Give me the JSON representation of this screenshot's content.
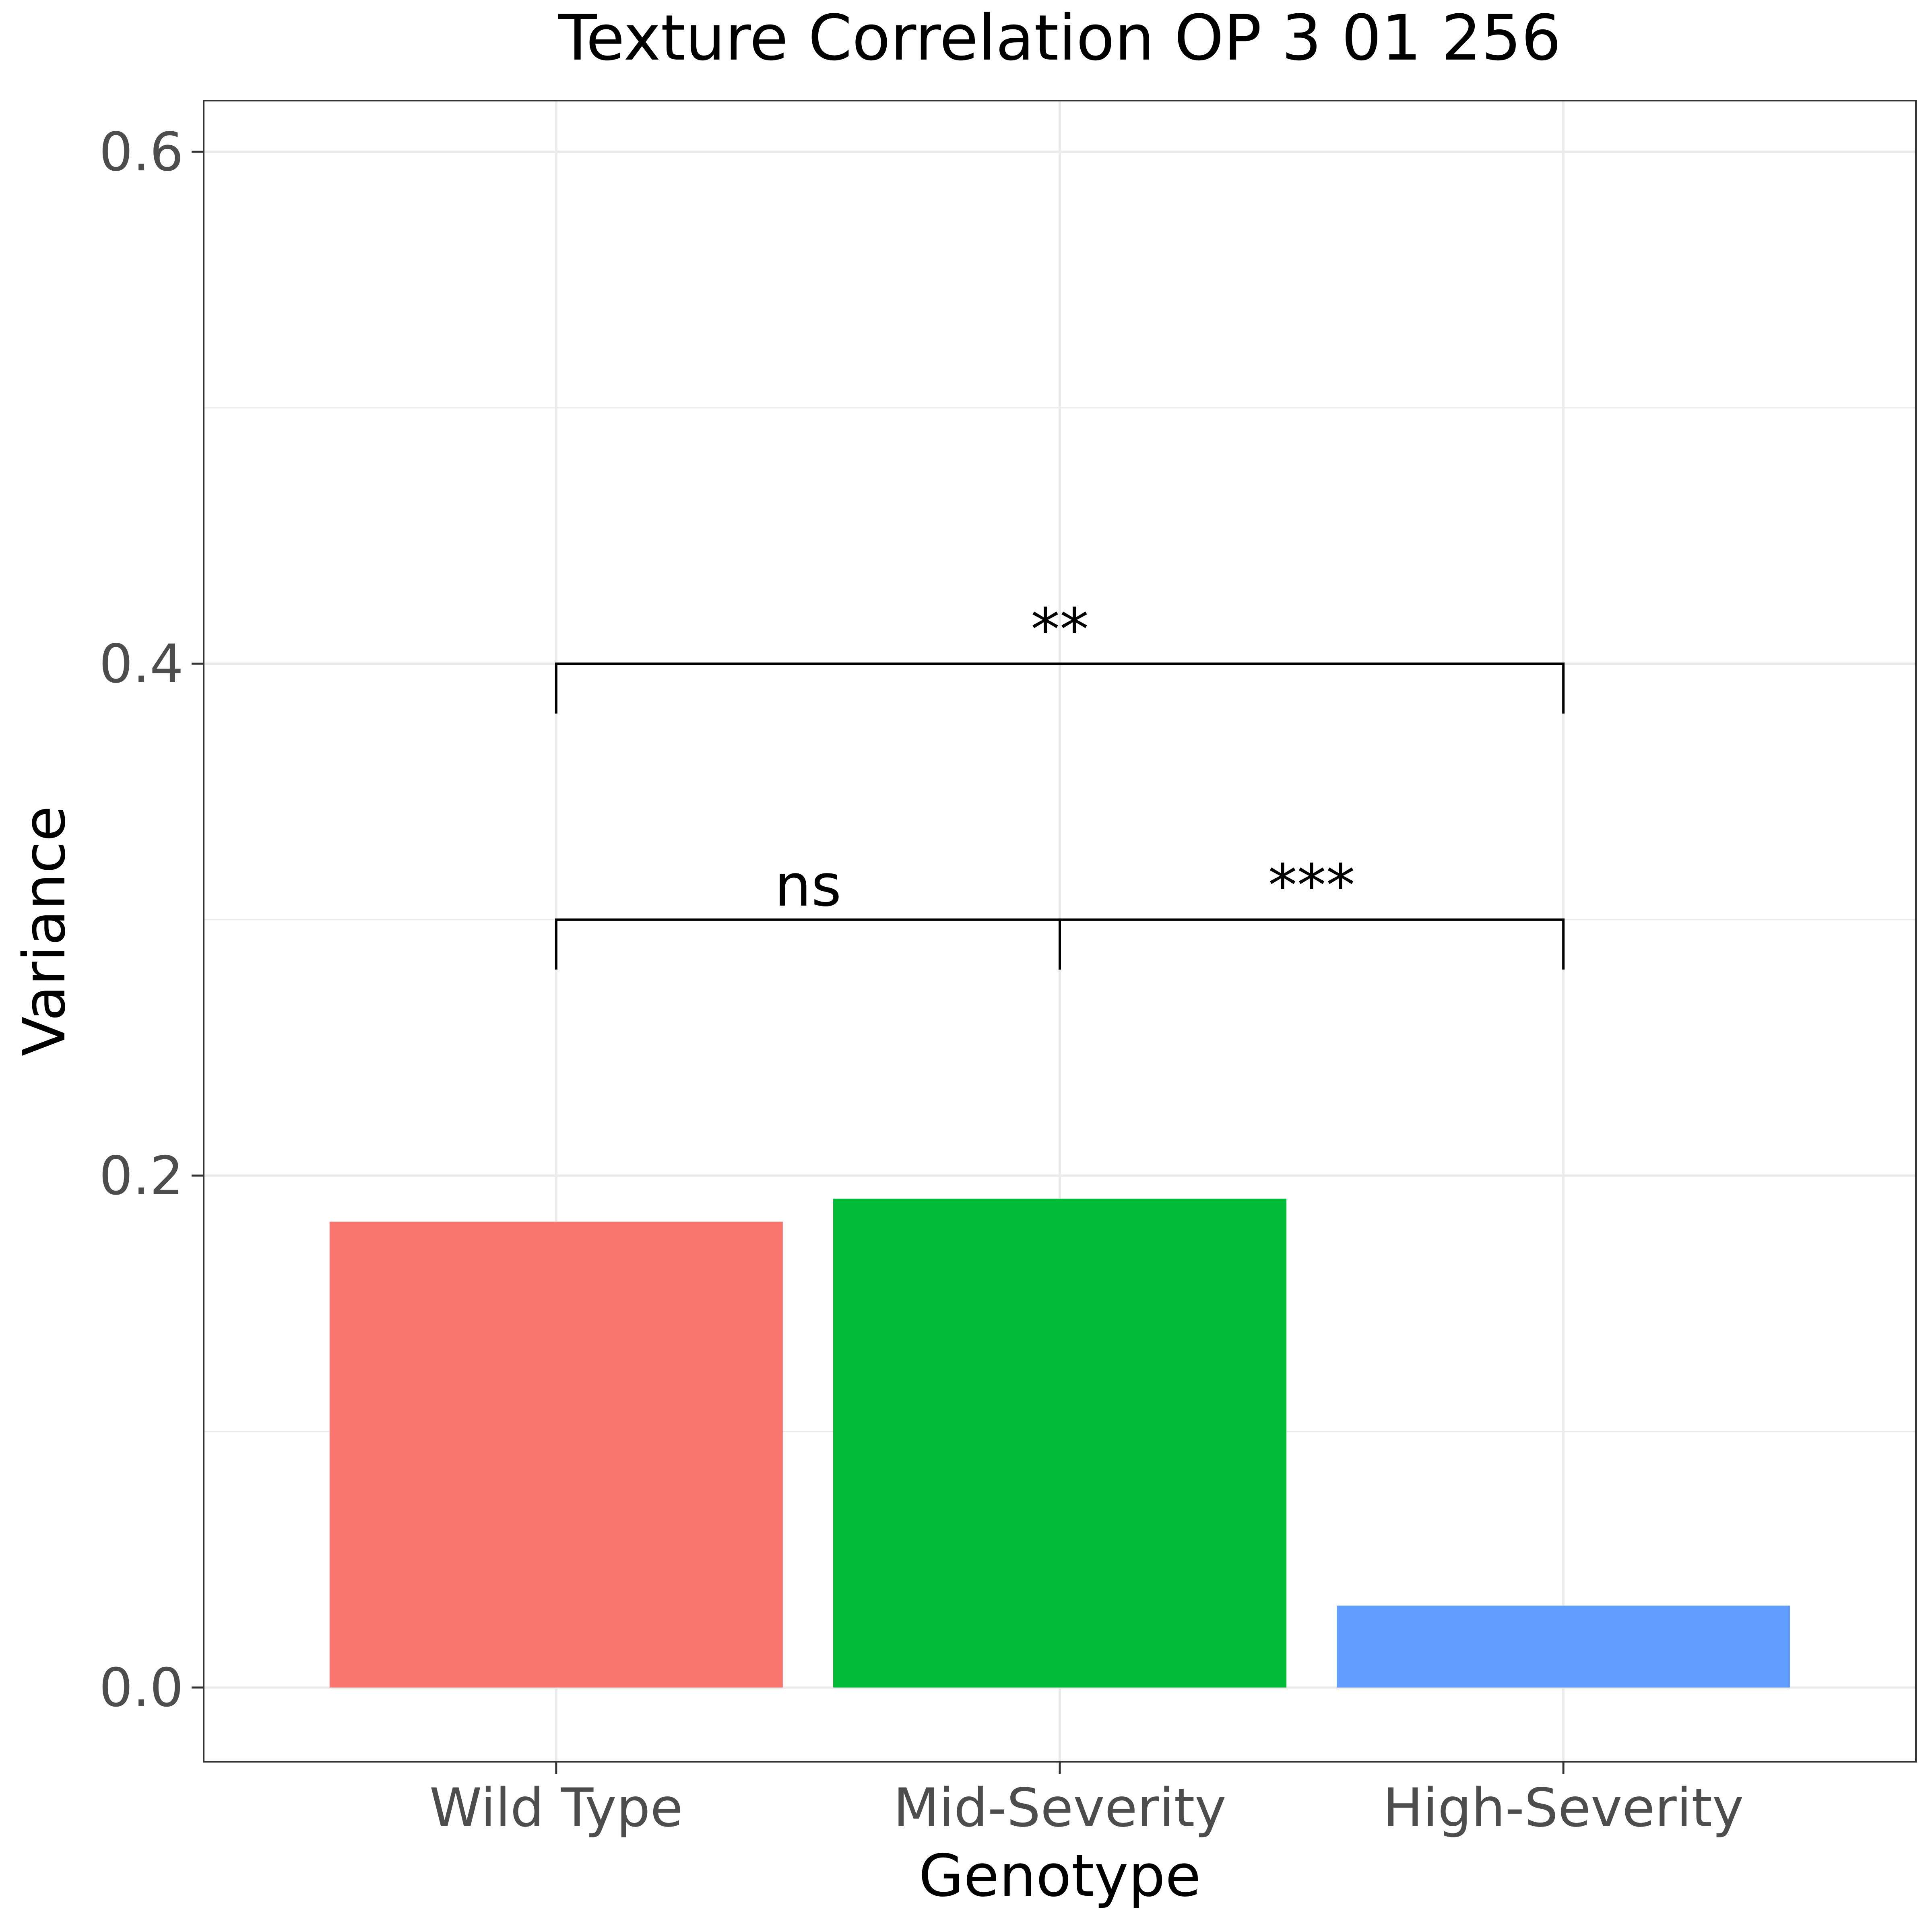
{
  "chart_data": {
    "type": "bar",
    "title": "Texture Correlation OP 3 01 256",
    "xlabel": "Genotype",
    "ylabel": "Variance",
    "categories": [
      "Wild Type",
      "Mid-Severity",
      "High-Severity"
    ],
    "values": [
      0.182,
      0.191,
      0.032
    ],
    "colors": [
      "#F8766D",
      "#00BA38",
      "#619CFF"
    ],
    "ylim": [
      -0.029,
      0.62
    ],
    "yticks": [
      0.0,
      0.2,
      0.4,
      0.6
    ],
    "ytick_labels": [
      "0.0",
      "0.2",
      "0.4",
      "0.6"
    ],
    "grid": true,
    "legend": "none",
    "significance": [
      {
        "from": "Wild Type",
        "to": "Mid-Severity",
        "y": 0.3,
        "label": "ns"
      },
      {
        "from": "Mid-Severity",
        "to": "High-Severity",
        "y": 0.3,
        "label": "***"
      },
      {
        "from": "Wild Type",
        "to": "High-Severity",
        "y": 0.4,
        "label": "**"
      }
    ]
  }
}
